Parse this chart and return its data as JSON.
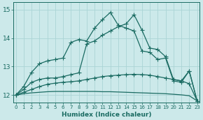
{
  "xlabel": "Humidex (Indice chaleur)",
  "bg_color": "#cce9ea",
  "grid_color": "#aad4d5",
  "line_color": "#1a6b62",
  "xlim": [
    -0.3,
    23.3
  ],
  "ylim": [
    11.75,
    15.25
  ],
  "yticks": [
    12,
    13,
    14,
    15
  ],
  "xticks": [
    0,
    1,
    2,
    3,
    4,
    5,
    6,
    7,
    8,
    9,
    10,
    11,
    12,
    13,
    14,
    15,
    16,
    17,
    18,
    19,
    20,
    21,
    22,
    23
  ],
  "line1_y": [
    12.0,
    12.3,
    12.8,
    13.1,
    13.2,
    13.25,
    13.3,
    13.85,
    13.95,
    13.9,
    14.35,
    14.65,
    14.9,
    14.45,
    14.35,
    14.25,
    13.55,
    13.5,
    13.25,
    13.3,
    12.5,
    12.45,
    12.85,
    11.8
  ],
  "line2_y": [
    12.0,
    12.2,
    12.45,
    12.55,
    12.6,
    12.6,
    12.65,
    12.72,
    12.78,
    13.8,
    13.9,
    14.1,
    14.25,
    14.4,
    14.5,
    14.82,
    14.28,
    13.65,
    13.6,
    13.35,
    12.55,
    12.5,
    12.85,
    11.8
  ],
  "line3_y": [
    12.0,
    12.1,
    12.2,
    12.3,
    12.38,
    12.42,
    12.45,
    12.47,
    12.5,
    12.55,
    12.6,
    12.65,
    12.68,
    12.7,
    12.72,
    12.73,
    12.72,
    12.7,
    12.65,
    12.6,
    12.55,
    12.5,
    12.4,
    11.8
  ],
  "line4_y": [
    12.0,
    12.05,
    12.08,
    12.1,
    12.12,
    12.13,
    12.13,
    12.13,
    12.13,
    12.13,
    12.13,
    12.12,
    12.12,
    12.11,
    12.1,
    12.09,
    12.08,
    12.07,
    12.06,
    12.05,
    12.03,
    12.01,
    11.98,
    11.8
  ],
  "marker": "+",
  "markersize": 4,
  "linewidth": 0.9
}
